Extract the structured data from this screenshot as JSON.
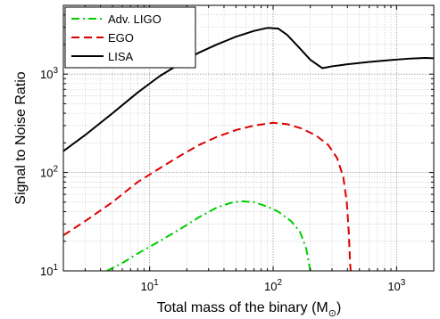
{
  "chart_data": {
    "type": "line",
    "xlabel": "Total mass of the binary (M",
    "xlabel_sub": "⊙",
    "xlabel_close": ")",
    "ylabel": "Signal to Noise Ratio",
    "x_scale": "log",
    "y_scale": "log",
    "xlim": [
      2,
      2000
    ],
    "ylim": [
      10,
      5000
    ],
    "x_ticks": [
      {
        "value": 10,
        "base": "10",
        "exp": "1"
      },
      {
        "value": 100,
        "base": "10",
        "exp": "2"
      },
      {
        "value": 1000,
        "base": "10",
        "exp": "3"
      }
    ],
    "y_ticks": [
      {
        "value": 10,
        "base": "10",
        "exp": "1"
      },
      {
        "value": 100,
        "base": "10",
        "exp": "2"
      },
      {
        "value": 1000,
        "base": "10",
        "exp": "3"
      }
    ],
    "grid": true,
    "legend_position": "top-left",
    "series": [
      {
        "name": "Adv. LIGO",
        "color": "#00cc00",
        "dash": "dash-dot",
        "points": [
          [
            4.5,
            10
          ],
          [
            6,
            12
          ],
          [
            8,
            15
          ],
          [
            12,
            20
          ],
          [
            18,
            27
          ],
          [
            25,
            35
          ],
          [
            35,
            44
          ],
          [
            45,
            49
          ],
          [
            55,
            51
          ],
          [
            70,
            50
          ],
          [
            90,
            45
          ],
          [
            110,
            40
          ],
          [
            140,
            32
          ],
          [
            165,
            25
          ],
          [
            185,
            17
          ],
          [
            195,
            12
          ],
          [
            200,
            10
          ]
        ]
      },
      {
        "name": "EGO",
        "color": "#dd0000",
        "dash": "dashed",
        "points": [
          [
            2,
            23
          ],
          [
            3,
            32
          ],
          [
            5,
            50
          ],
          [
            8,
            80
          ],
          [
            12,
            110
          ],
          [
            18,
            150
          ],
          [
            25,
            190
          ],
          [
            35,
            230
          ],
          [
            50,
            270
          ],
          [
            70,
            300
          ],
          [
            100,
            320
          ],
          [
            130,
            310
          ],
          [
            170,
            280
          ],
          [
            220,
            240
          ],
          [
            280,
            190
          ],
          [
            330,
            140
          ],
          [
            370,
            90
          ],
          [
            395,
            50
          ],
          [
            410,
            25
          ],
          [
            420,
            12
          ],
          [
            425,
            10
          ]
        ]
      },
      {
        "name": "LISA",
        "color": "#000000",
        "dash": "solid",
        "points": [
          [
            2,
            165
          ],
          [
            3,
            240
          ],
          [
            5,
            400
          ],
          [
            8,
            650
          ],
          [
            12,
            950
          ],
          [
            18,
            1300
          ],
          [
            25,
            1650
          ],
          [
            35,
            2000
          ],
          [
            50,
            2400
          ],
          [
            70,
            2750
          ],
          [
            90,
            2950
          ],
          [
            110,
            2900
          ],
          [
            130,
            2500
          ],
          [
            160,
            1900
          ],
          [
            200,
            1400
          ],
          [
            250,
            1150
          ],
          [
            300,
            1200
          ],
          [
            400,
            1260
          ],
          [
            600,
            1330
          ],
          [
            900,
            1390
          ],
          [
            1300,
            1440
          ],
          [
            1700,
            1460
          ],
          [
            2000,
            1450
          ]
        ]
      }
    ]
  }
}
